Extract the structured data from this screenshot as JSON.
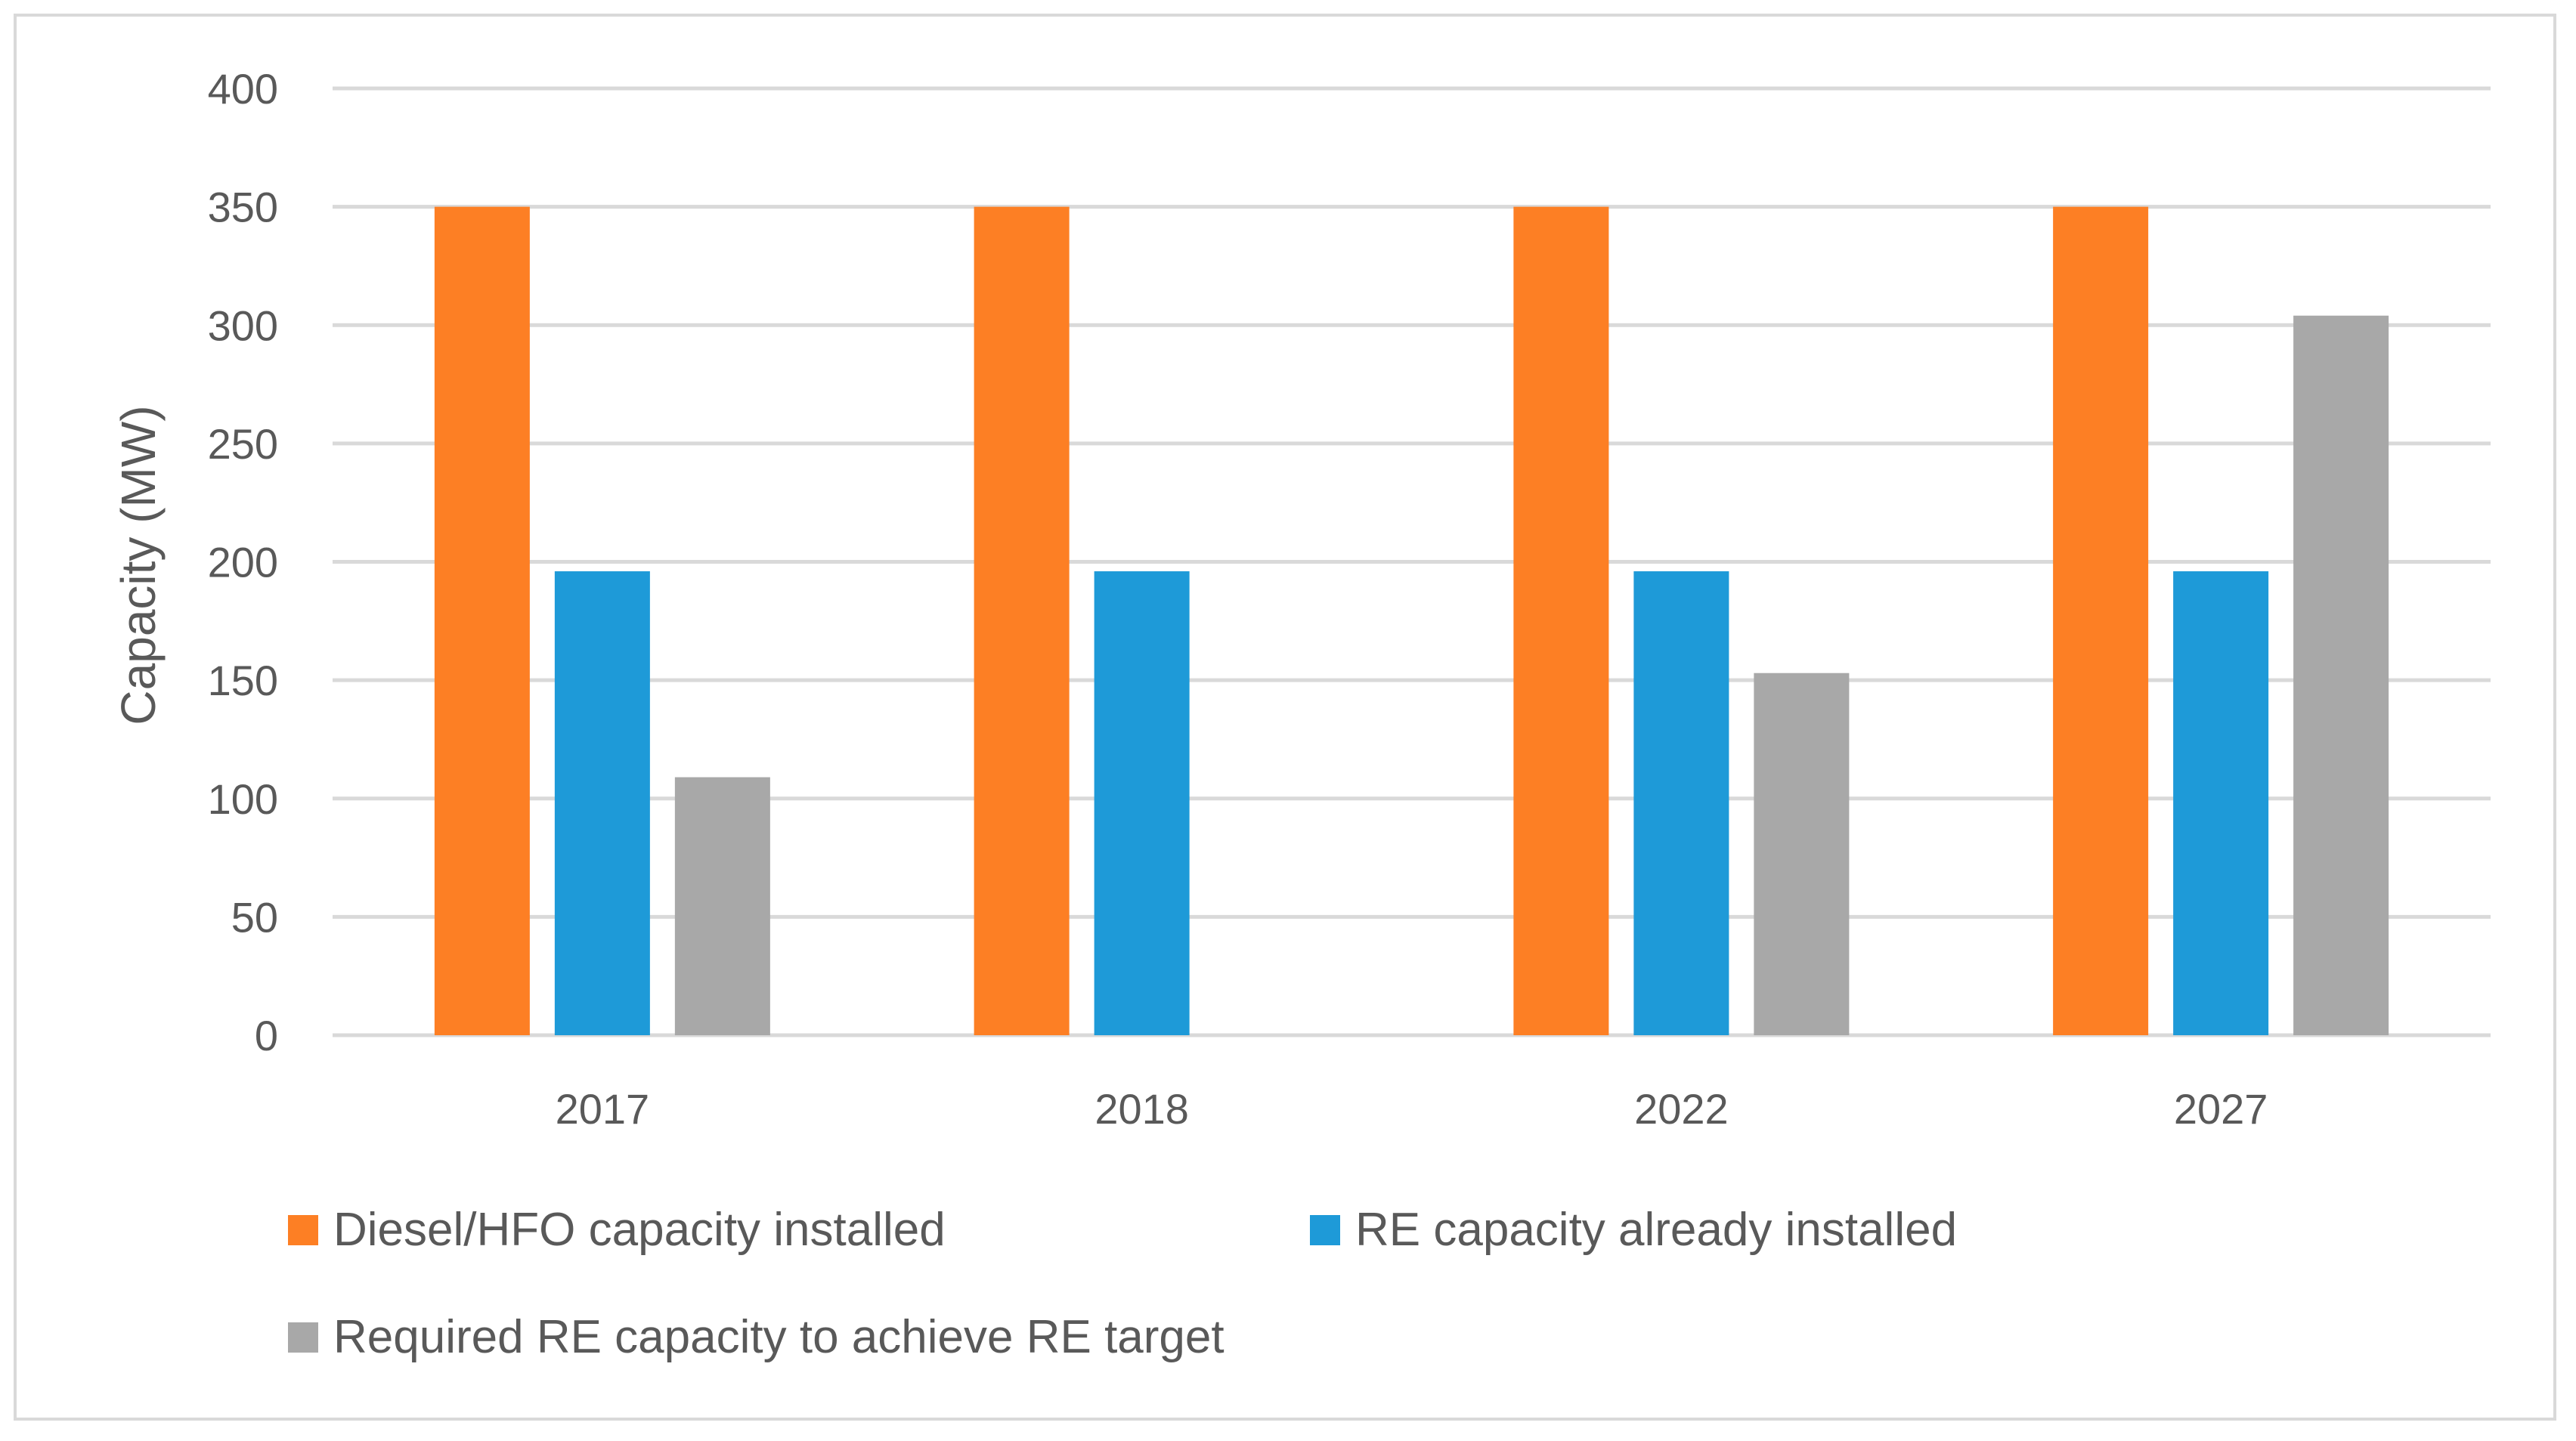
{
  "chart_data": {
    "type": "bar",
    "title": "",
    "xlabel": "",
    "ylabel": "Capacity (MW)",
    "ylim": [
      0,
      400
    ],
    "yticks": [
      0,
      50,
      100,
      150,
      200,
      250,
      300,
      350,
      400
    ],
    "grid": true,
    "legend_position": "bottom",
    "categories": [
      "2017",
      "2018",
      "2022",
      "2027"
    ],
    "series": [
      {
        "name": "Diesel/HFO capacity installed",
        "color": "#fd7f24",
        "values": [
          350,
          350,
          350,
          350
        ]
      },
      {
        "name": "RE capacity already installed",
        "color": "#1e9ad8",
        "values": [
          196,
          196,
          196,
          196
        ]
      },
      {
        "name": "Required RE capacity to achieve RE target",
        "color": "#a8a8a8",
        "values": [
          109,
          0,
          153,
          304
        ]
      }
    ]
  }
}
